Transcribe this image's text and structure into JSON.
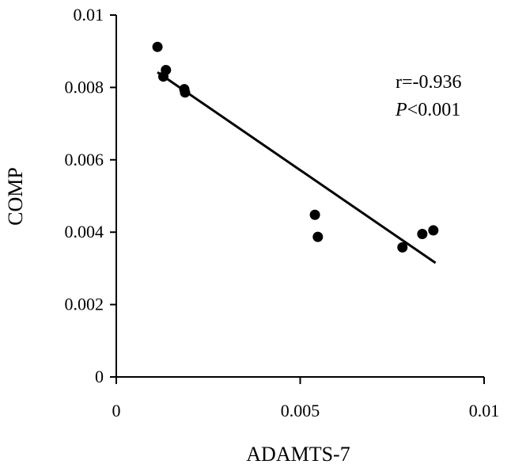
{
  "chart_data": {
    "type": "scatter",
    "xlabel": "ADAMTS-7",
    "ylabel": "COMP",
    "xlim": [
      0,
      0.01
    ],
    "ylim": [
      0,
      0.01
    ],
    "x_ticks": [
      "0",
      "0.005",
      "0.01"
    ],
    "y_ticks": [
      "0",
      "0.002",
      "0.004",
      "0.006",
      "0.008",
      "0.01"
    ],
    "grid": false,
    "legend": "none",
    "series": [
      {
        "points": [
          {
            "x": 0.00112,
            "y": 0.00912
          },
          {
            "x": 0.00135,
            "y": 0.00848
          },
          {
            "x": 0.00128,
            "y": 0.0083
          },
          {
            "x": 0.00185,
            "y": 0.00795
          },
          {
            "x": 0.00187,
            "y": 0.00786
          },
          {
            "x": 0.0054,
            "y": 0.00448
          },
          {
            "x": 0.00548,
            "y": 0.00387
          },
          {
            "x": 0.00778,
            "y": 0.00358
          },
          {
            "x": 0.00832,
            "y": 0.00395
          },
          {
            "x": 0.00862,
            "y": 0.00405
          }
        ],
        "color": "#000000"
      }
    ],
    "trendline": {
      "from": {
        "x": 0.00112,
        "y": 0.00842
      },
      "to": {
        "x": 0.00868,
        "y": 0.00315
      },
      "color": "#000000"
    },
    "annotations": {
      "r_text": "r=-0.936",
      "p_symbol": "P",
      "p_rest": "<0.001"
    }
  }
}
